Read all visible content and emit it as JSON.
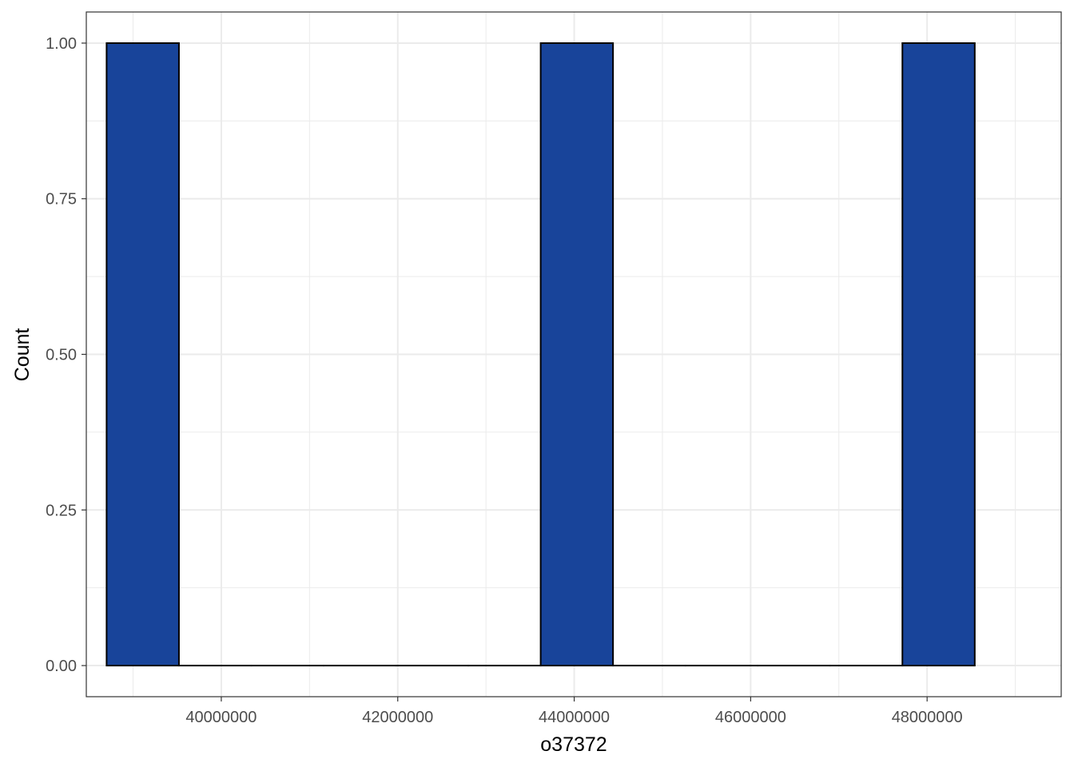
{
  "chart_data": {
    "type": "bar",
    "subtype": "histogram",
    "title": "",
    "xlabel": "o37372",
    "ylabel": "Count",
    "x_ticks": [
      40000000,
      42000000,
      44000000,
      46000000,
      48000000
    ],
    "x_tick_labels": [
      "40000000",
      "42000000",
      "44000000",
      "46000000",
      "48000000"
    ],
    "y_ticks": [
      0,
      0.25,
      0.5,
      0.75,
      1
    ],
    "y_tick_labels": [
      "0.00",
      "0.25",
      "0.50",
      "0.75",
      "1.00"
    ],
    "xlim": [
      38470000,
      49520000
    ],
    "ylim": [
      -0.05,
      1.05
    ],
    "bin_width": 820000,
    "bins": [
      {
        "start": 38700000,
        "end": 39520000,
        "count": 1
      },
      {
        "start": 39520000,
        "end": 40340000,
        "count": 0
      },
      {
        "start": 40340000,
        "end": 41160000,
        "count": 0
      },
      {
        "start": 41160000,
        "end": 41980000,
        "count": 0
      },
      {
        "start": 41980000,
        "end": 42800000,
        "count": 0
      },
      {
        "start": 42800000,
        "end": 43620000,
        "count": 0
      },
      {
        "start": 43620000,
        "end": 44440000,
        "count": 1
      },
      {
        "start": 44440000,
        "end": 45260000,
        "count": 0
      },
      {
        "start": 45260000,
        "end": 46080000,
        "count": 0
      },
      {
        "start": 46080000,
        "end": 46900000,
        "count": 0
      },
      {
        "start": 46900000,
        "end": 47720000,
        "count": 0
      },
      {
        "start": 47720000,
        "end": 48540000,
        "count": 1
      }
    ],
    "grid": true,
    "legend": "none",
    "colors": {
      "bar_fill": "#18449A",
      "bar_stroke": "#000000",
      "grid": "#EBEBEB",
      "panel_border": "#333333"
    }
  }
}
